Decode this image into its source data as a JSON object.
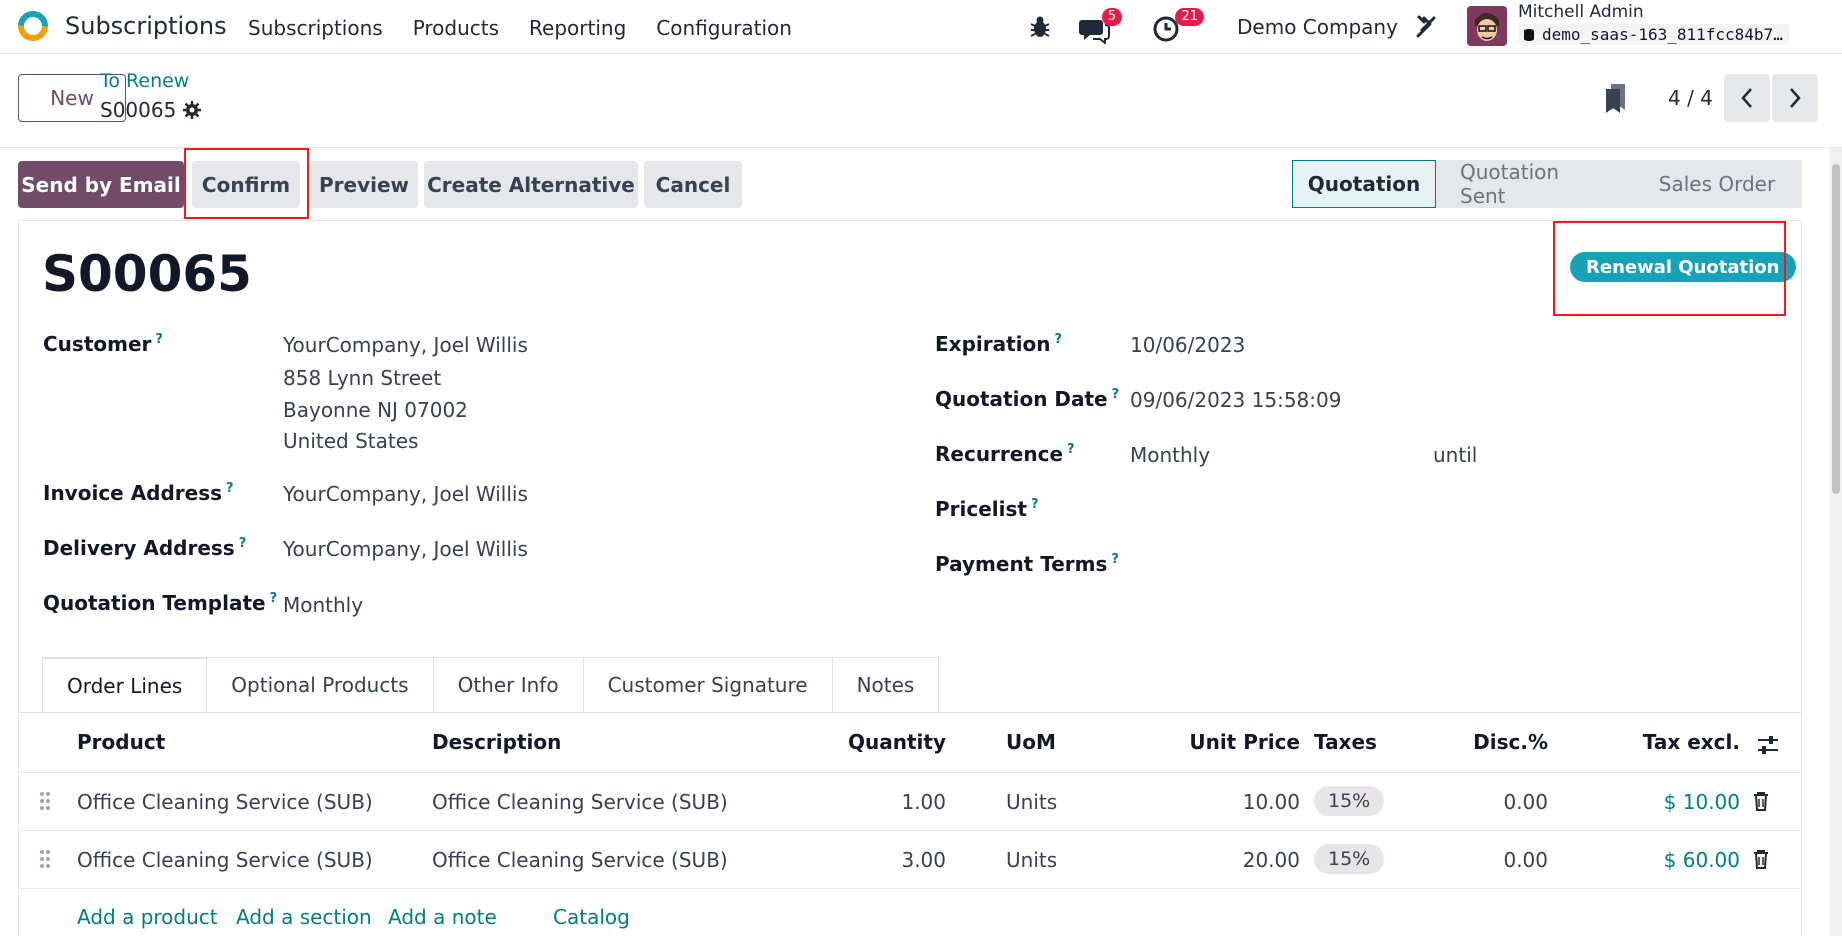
{
  "app": {
    "name": "Subscriptions",
    "menu": [
      "Subscriptions",
      "Products",
      "Reporting",
      "Configuration"
    ],
    "chat_count": "5",
    "activity_count": "21",
    "company": "Demo Company",
    "user_name": "Mitchell Admin",
    "db_name": "demo_saas-163_811fcc84b7…"
  },
  "control": {
    "new_label": "New",
    "breadcrumb": "To Renew",
    "record": "S00065",
    "pager": "4 / 4"
  },
  "actions": {
    "send_email": "Send by Email",
    "confirm": "Confirm",
    "preview": "Preview",
    "create_alternative": "Create Alternative",
    "cancel": "Cancel"
  },
  "stages": [
    "Quotation",
    "Quotation Sent",
    "Sales Order"
  ],
  "form": {
    "title": "S00065",
    "tag": "Renewal Quotation",
    "customer_label": "Customer",
    "customer_lines": [
      "YourCompany, Joel Willis",
      "858 Lynn Street",
      "Bayonne NJ 07002",
      "United States"
    ],
    "invoice_label": "Invoice Address",
    "invoice_value": "YourCompany, Joel Willis",
    "delivery_label": "Delivery Address",
    "delivery_value": "YourCompany, Joel Willis",
    "template_label": "Quotation Template",
    "template_value": "Monthly",
    "expiration_label": "Expiration",
    "expiration_value": "10/06/2023",
    "quote_date_label": "Quotation Date",
    "quote_date_value": "09/06/2023 15:58:09",
    "recurrence_label": "Recurrence",
    "recurrence_value": "Monthly",
    "recurrence_until": "until",
    "pricelist_label": "Pricelist",
    "payment_terms_label": "Payment Terms",
    "help_mark": "?"
  },
  "tabs": [
    "Order Lines",
    "Optional Products",
    "Other Info",
    "Customer Signature",
    "Notes"
  ],
  "table": {
    "headers": {
      "product": "Product",
      "description": "Description",
      "quantity": "Quantity",
      "uom": "UoM",
      "unit_price": "Unit Price",
      "taxes": "Taxes",
      "discount": "Disc.%",
      "tax_excl": "Tax excl."
    },
    "rows": [
      {
        "product": "Office Cleaning Service (SUB)",
        "description": "Office Cleaning Service (SUB)",
        "quantity": "1.00",
        "uom": "Units",
        "unit_price": "10.00",
        "tax": "15%",
        "discount": "0.00",
        "subtotal": "$ 10.00"
      },
      {
        "product": "Office Cleaning Service (SUB)",
        "description": "Office Cleaning Service (SUB)",
        "quantity": "3.00",
        "uom": "Units",
        "unit_price": "20.00",
        "tax": "15%",
        "discount": "0.00",
        "subtotal": "$ 60.00"
      }
    ],
    "add_product": "Add a product",
    "add_section": "Add a section",
    "add_note": "Add a note",
    "catalog": "Catalog"
  },
  "colors": {
    "brand": "#714b67",
    "teal": "#017e84",
    "tag": "#17a2b8",
    "highlight": "#ef1c1c",
    "badge": "#e11d48"
  }
}
